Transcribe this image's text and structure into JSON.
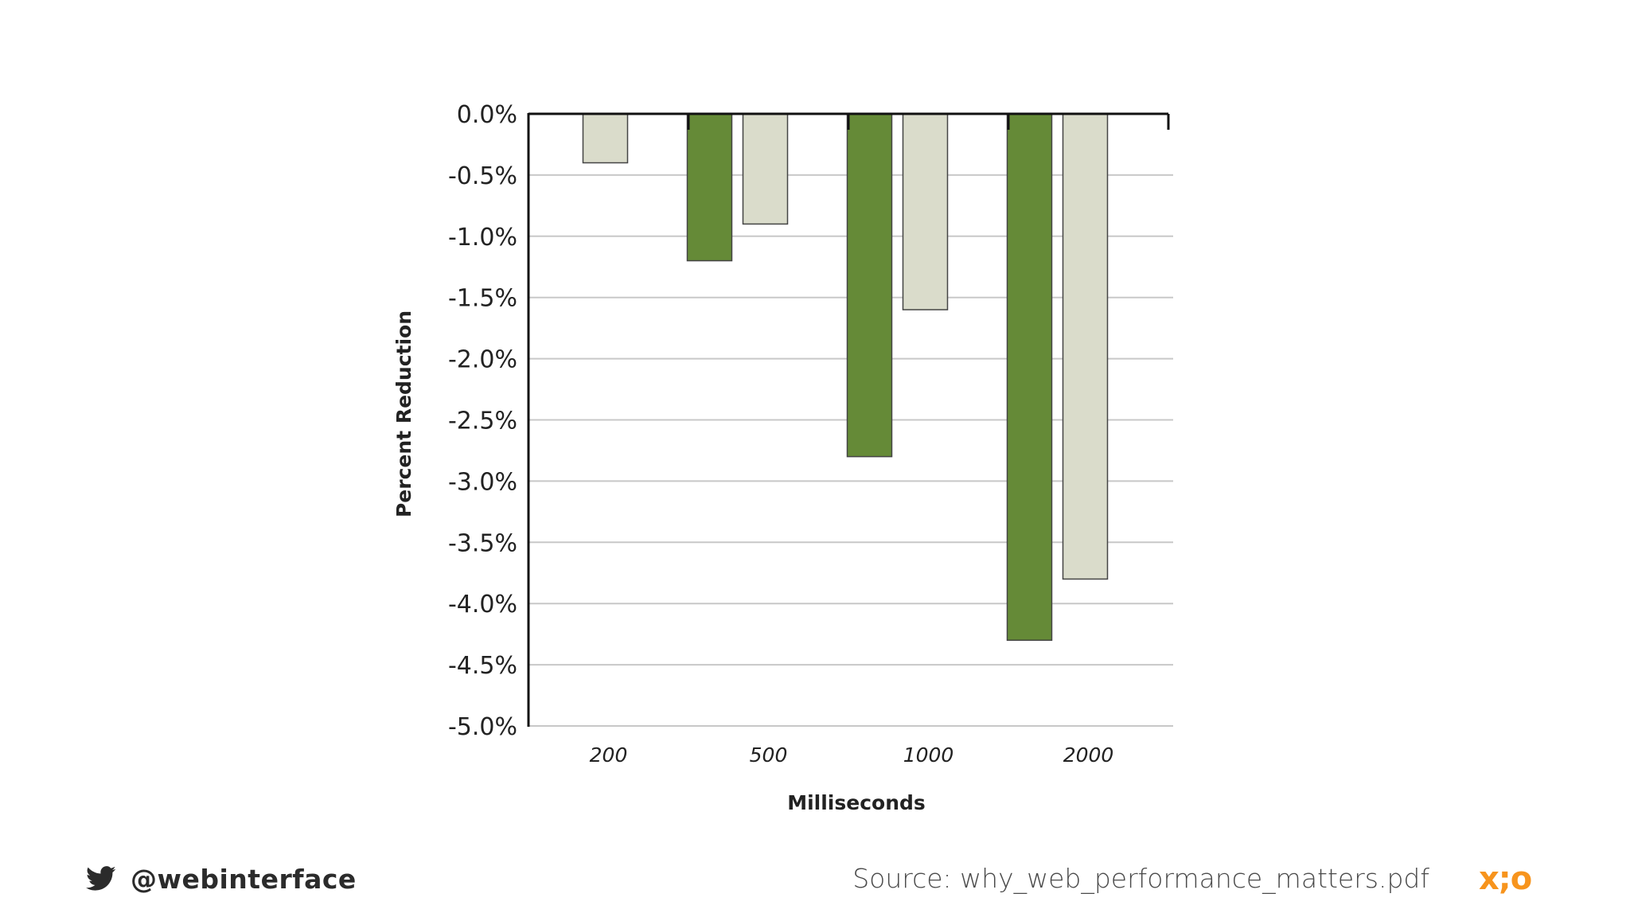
{
  "chart_data": {
    "type": "bar",
    "title": "",
    "xlabel": "Milliseconds",
    "ylabel": "Percent Reduction",
    "categories": [
      "200",
      "500",
      "1000",
      "2000"
    ],
    "ylim": [
      -5.0,
      0.0
    ],
    "yticks": [
      "0.0%",
      "-0.5%",
      "-1.0%",
      "-1.5%",
      "-2.0%",
      "-2.5%",
      "-3.0%",
      "-3.5%",
      "-4.0%",
      "-4.5%",
      "-5.0%"
    ],
    "ytick_values": [
      0.0,
      -0.5,
      -1.0,
      -1.5,
      -2.0,
      -2.5,
      -3.0,
      -3.5,
      -4.0,
      -4.5,
      -5.0
    ],
    "grid": true,
    "legend": "none",
    "series": [
      {
        "name": "dark-green",
        "color": "#658a37",
        "values": [
          null,
          -1.2,
          -2.8,
          -4.3
        ]
      },
      {
        "name": "light-gray",
        "color": "#dadccb",
        "values": [
          -0.4,
          -0.9,
          -1.6,
          -3.8
        ]
      }
    ]
  },
  "footer": {
    "twitter_icon": "twitter-bird-icon",
    "handle": "@webinterface",
    "source": "Source: why_web_performance_matters.pdf",
    "logo_text": "x;o",
    "logo_color": "#f7941d"
  }
}
